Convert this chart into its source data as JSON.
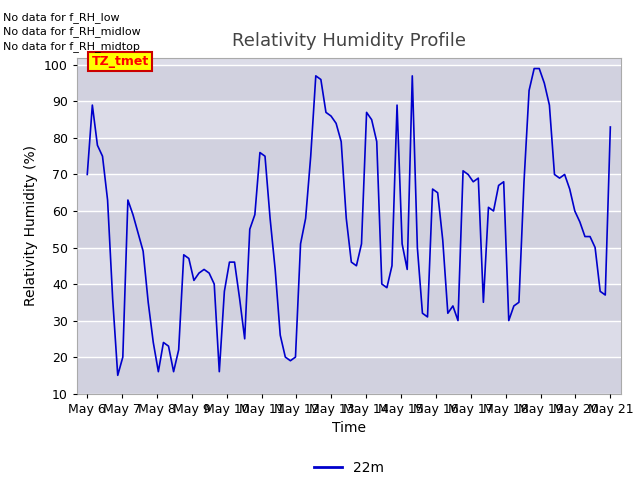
{
  "title": "Relativity Humidity Profile",
  "ylabel": "Relativity Humidity (%)",
  "xlabel": "Time",
  "legend_label": "22m",
  "no_data_texts": [
    "No data for f_RH_low",
    "No data for f_RH_midlow",
    "No data for f_RH_midtop"
  ],
  "tz_tmet_label": "TZ_tmet",
  "ylim": [
    10,
    102
  ],
  "yticks": [
    10,
    20,
    30,
    40,
    50,
    60,
    70,
    80,
    90,
    100
  ],
  "line_color": "#0000cc",
  "bg_color": "#ffffff",
  "axes_facecolor": "#dcdce8",
  "band_color_dark": "#ccccdd",
  "grid_color": "#ffffff",
  "title_fontsize": 13,
  "label_fontsize": 10,
  "tick_label_fontsize": 9,
  "x_tick_labels": [
    "May 6",
    "May 7",
    "May 8",
    "May 9",
    "May 10",
    "May 11",
    "May 12",
    "May 13",
    "May 14",
    "May 15",
    "May 16",
    "May 17",
    "May 18",
    "May 19",
    "May 20",
    "May 21"
  ],
  "y_values": [
    70,
    89,
    78,
    75,
    63,
    36,
    15,
    20,
    63,
    59,
    54,
    49,
    35,
    24,
    16,
    24,
    23,
    16,
    22,
    48,
    47,
    41,
    43,
    44,
    43,
    40,
    16,
    38,
    46,
    46,
    36,
    25,
    55,
    59,
    76,
    75,
    58,
    44,
    26,
    20,
    19,
    20,
    51,
    58,
    75,
    97,
    96,
    87,
    86,
    84,
    79,
    58,
    46,
    45,
    51,
    87,
    85,
    79,
    40,
    39,
    45,
    89,
    51,
    44,
    97,
    50,
    32,
    31,
    66,
    65,
    52,
    32,
    34,
    30,
    71,
    70,
    68,
    69,
    35,
    61,
    60,
    67,
    68,
    30,
    34,
    35,
    68,
    93,
    99,
    99,
    95,
    89,
    70,
    69,
    70,
    66,
    60,
    57,
    53,
    53,
    50,
    38,
    37,
    83
  ]
}
